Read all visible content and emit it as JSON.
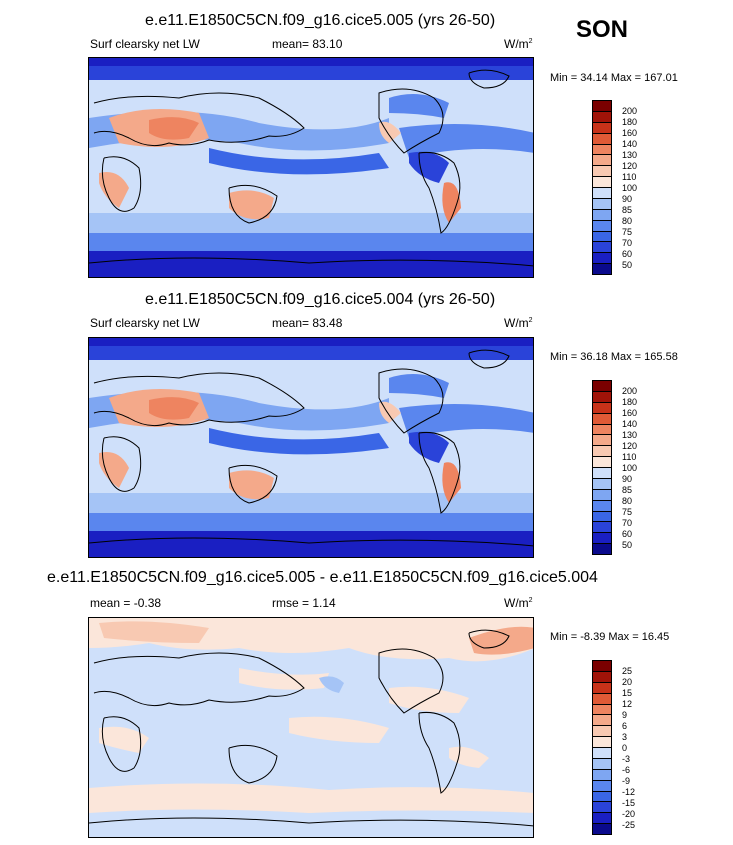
{
  "season": "SON",
  "colors": {
    "abs_scale": [
      "#0a0a8c",
      "#1a1fc2",
      "#2a43d9",
      "#3a66e6",
      "#5a86ee",
      "#7ea6f2",
      "#a5c4f6",
      "#cfe0fa",
      "#fbe6da",
      "#f8c9b2",
      "#f4a98a",
      "#ee8460",
      "#e05a36",
      "#c83219",
      "#a11308",
      "#7a0000"
    ],
    "diff_scale": [
      "#0a0a8c",
      "#1a1fc2",
      "#2a43d9",
      "#3a66e6",
      "#5a86ee",
      "#7ea6f2",
      "#a5c4f6",
      "#cfe0fa",
      "#fbe6da",
      "#f8c9b2",
      "#f4a98a",
      "#ee8460",
      "#e05a36",
      "#c83219",
      "#a11308",
      "#7a0000"
    ]
  },
  "panels": [
    {
      "title": "e.e11.E1850C5CN.f09_g16.cice5.005 (yrs 26-50)",
      "left_label": "Surf clearsky net LW",
      "mid_label": "mean=  83.10",
      "units": "W/m",
      "units_sup": "2",
      "minmax": "Min =  34.14 Max = 167.01",
      "levels": [
        "200",
        "180",
        "160",
        "140",
        "130",
        "120",
        "110",
        "100",
        "90",
        "85",
        "80",
        "75",
        "70",
        "60",
        "50"
      ]
    },
    {
      "title": "e.e11.E1850C5CN.f09_g16.cice5.004 (yrs 26-50)",
      "left_label": "Surf clearsky net LW",
      "mid_label": "mean=  83.48",
      "units": "W/m",
      "units_sup": "2",
      "minmax": "Min =  36.18 Max = 165.58",
      "levels": [
        "200",
        "180",
        "160",
        "140",
        "130",
        "120",
        "110",
        "100",
        "90",
        "85",
        "80",
        "75",
        "70",
        "60",
        "50"
      ]
    },
    {
      "title": "e.e11.E1850C5CN.f09_g16.cice5.005 - e.e11.E1850C5CN.f09_g16.cice5.004",
      "left_label": "mean =  -0.38",
      "mid_label": "rmse =   1.14",
      "units": "W/m",
      "units_sup": "2",
      "minmax": "Min =  -8.39 Max =  16.45",
      "levels": [
        "25",
        "20",
        "15",
        "12",
        "9",
        "6",
        "3",
        "0",
        "-3",
        "-6",
        "-9",
        "-12",
        "-15",
        "-20",
        "-25"
      ]
    }
  ]
}
